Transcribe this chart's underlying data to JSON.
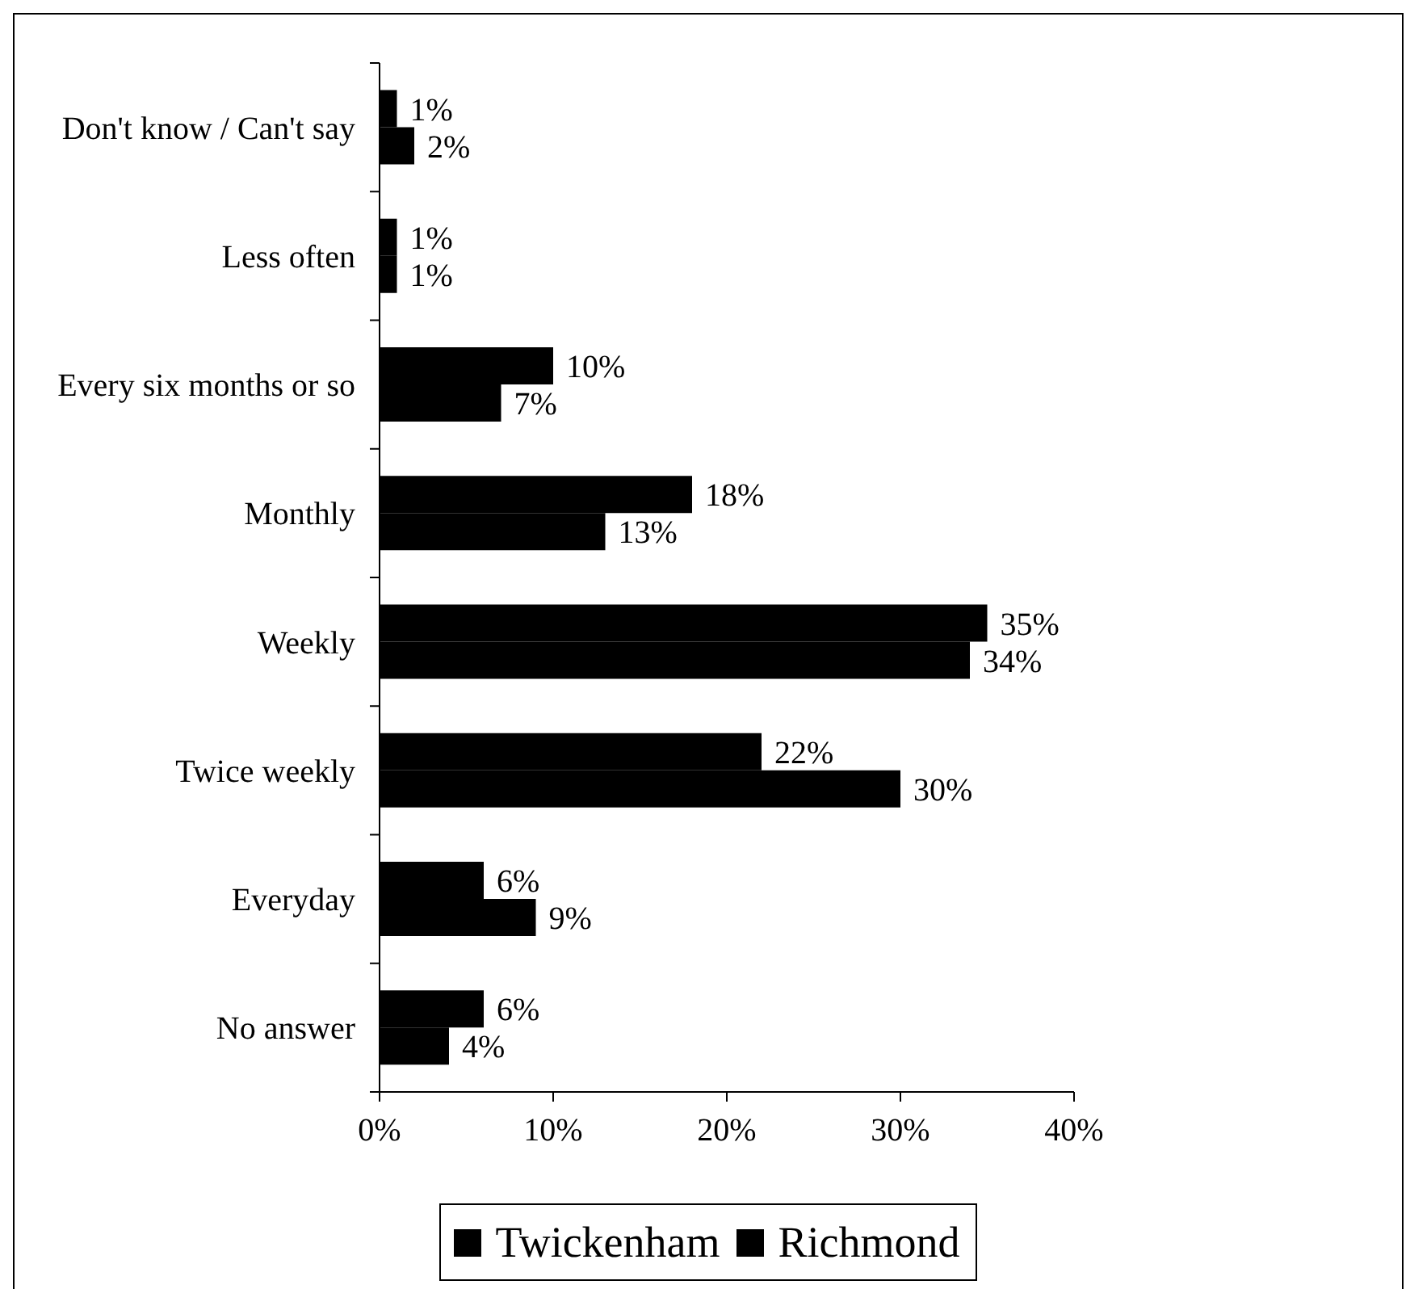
{
  "chart_data": {
    "type": "bar",
    "orientation": "horizontal",
    "categories": [
      "Don't know / Can't say",
      "Less often",
      "Every six months or so",
      "Monthly",
      "Weekly",
      "Twice weekly",
      "Everyday",
      "No answer"
    ],
    "series": [
      {
        "name": "Twickenham",
        "color": "#000000",
        "values": [
          1,
          1,
          10,
          18,
          35,
          22,
          6,
          6
        ],
        "value_labels": [
          "1%",
          "1%",
          "10%",
          "18%",
          "35%",
          "22%",
          "6%",
          "6%"
        ]
      },
      {
        "name": "Richmond",
        "color": "#000000",
        "values": [
          2,
          1,
          7,
          13,
          34,
          30,
          9,
          4
        ],
        "value_labels": [
          "2%",
          "1%",
          "7%",
          "13%",
          "34%",
          "30%",
          "9%",
          "4%"
        ]
      }
    ],
    "xlim": [
      0,
      40
    ],
    "xticks": [
      {
        "value": 0,
        "label": "0%"
      },
      {
        "value": 10,
        "label": "10%"
      },
      {
        "value": 20,
        "label": "20%"
      },
      {
        "value": 30,
        "label": "30%"
      },
      {
        "value": 40,
        "label": "40%"
      }
    ],
    "legend": "bottom"
  }
}
